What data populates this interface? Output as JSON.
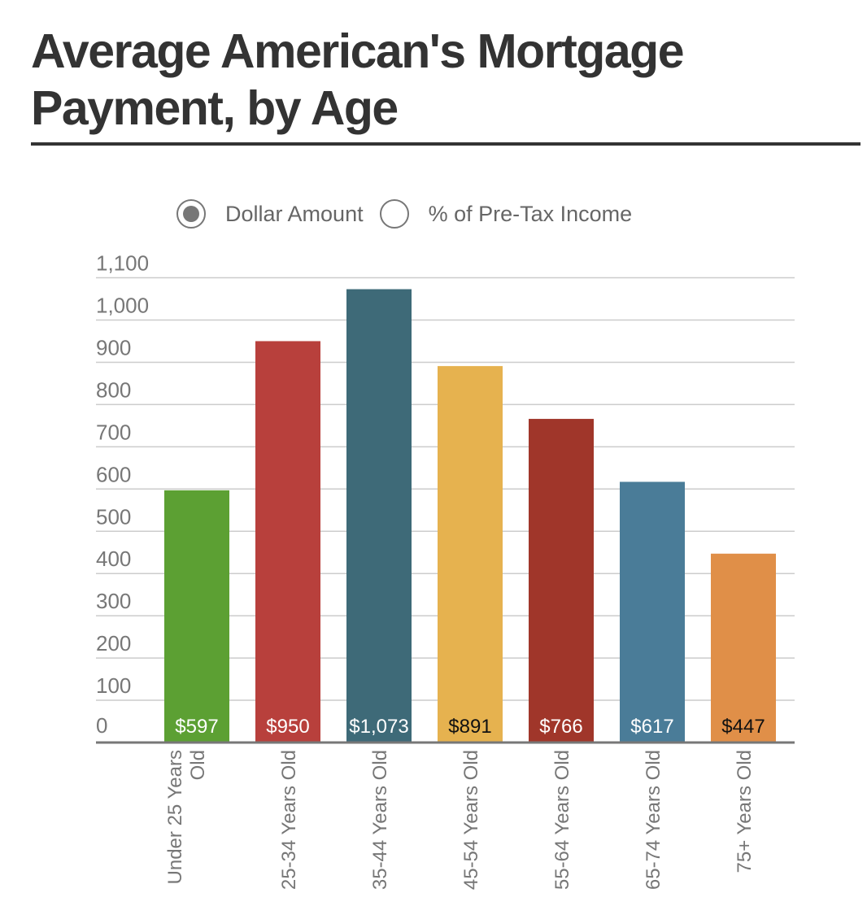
{
  "title": "Average American's Mortgage Payment, by Age",
  "toggles": {
    "dollar_label": "Dollar Amount",
    "percent_label": "% of Pre-Tax Income",
    "selected": "Dollar Amount"
  },
  "chart_data": {
    "type": "bar",
    "title": "Average American's Mortgage Payment, by Age",
    "xlabel": "",
    "ylabel": "",
    "ylim": [
      0,
      1100
    ],
    "yticks": [
      "0",
      "100",
      "200",
      "300",
      "400",
      "500",
      "600",
      "700",
      "800",
      "900",
      "1,000",
      "1,100"
    ],
    "grid": true,
    "categories": [
      [
        "Under 25 Years",
        "Old"
      ],
      [
        "25-34 Years Old"
      ],
      [
        "35-44 Years Old"
      ],
      [
        "45-54 Years Old"
      ],
      [
        "55-64 Years Old"
      ],
      [
        "65-74 Years Old"
      ],
      [
        "75+ Years Old"
      ]
    ],
    "values": [
      597,
      950,
      1073,
      891,
      766,
      617,
      447
    ],
    "labels": [
      "$597",
      "$950",
      "$1,073",
      "$891",
      "$766",
      "$617",
      "$447"
    ],
    "colors": [
      "#5ca033",
      "#b8403c",
      "#3e6a78",
      "#e6b24f",
      "#a0362a",
      "#4a7c98",
      "#e08f48"
    ],
    "label_colors": [
      "#ffffff",
      "#ffffff",
      "#ffffff",
      "#111111",
      "#ffffff",
      "#ffffff",
      "#111111"
    ]
  }
}
